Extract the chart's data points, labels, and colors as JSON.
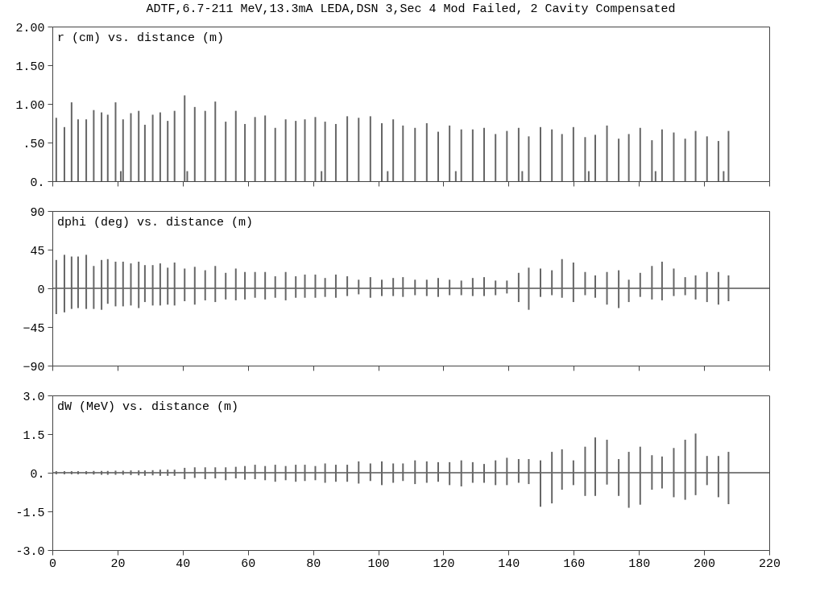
{
  "chart_data": [
    {
      "type": "bar",
      "title": "ADTF,6.7-211 MeV,13.3mA LEDA,DSN 3,Sec 4 Mod Failed, 2 Cavity Compensated",
      "annotations": [
        "r (cm) vs. distance (m)"
      ],
      "xlim": [
        0,
        220
      ],
      "xticks": [
        0,
        20,
        40,
        60,
        80,
        100,
        120,
        140,
        160,
        180,
        200,
        220
      ],
      "ylim": [
        0,
        2
      ],
      "yticks": [
        {
          "value": 0,
          "label": "0."
        },
        {
          "value": 0.5,
          "label": ".50"
        },
        {
          "value": 1,
          "label": "1.00"
        },
        {
          "value": 1.5,
          "label": "1.50"
        },
        {
          "value": 2,
          "label": "2.00"
        }
      ],
      "tick_labels": "y",
      "grid": false,
      "x": [
        1.2,
        3.7,
        5.9,
        7.9,
        10.4,
        12.7,
        15.1,
        17.0,
        19.4,
        21.7,
        24.1,
        26.5,
        28.4,
        30.8,
        33.1,
        35.4,
        37.5,
        40.6,
        43.7,
        46.9,
        50.0,
        53.2,
        56.3,
        59.1,
        62.2,
        65.3,
        68.4,
        71.6,
        74.7,
        77.5,
        80.7,
        83.7,
        87.0,
        90.5,
        94.0,
        97.6,
        101.1,
        104.6,
        107.6,
        111.3,
        114.9,
        118.4,
        121.9,
        125.5,
        129.0,
        132.5,
        136.0,
        139.5,
        143.1,
        146.2,
        149.8,
        153.3,
        156.4,
        159.9,
        163.5,
        166.6,
        170.2,
        173.8,
        176.9,
        180.4,
        184.0,
        187.1,
        190.7,
        194.2,
        197.4,
        200.9,
        204.4,
        207.5
      ],
      "series": [
        {
          "color": "#666666",
          "values": [
            0.82,
            0.7,
            1.02,
            0.8,
            0.8,
            0.92,
            0.89,
            0.86,
            1.02,
            0.8,
            0.88,
            0.91,
            0.73,
            0.86,
            0.89,
            0.78,
            0.91,
            1.11,
            0.96,
            0.91,
            1.03,
            0.77,
            0.91,
            0.74,
            0.83,
            0.85,
            0.69,
            0.8,
            0.78,
            0.8,
            0.83,
            0.77,
            0.74,
            0.84,
            0.82,
            0.84,
            0.75,
            0.8,
            0.72,
            0.69,
            0.75,
            0.64,
            0.72,
            0.67,
            0.67,
            0.69,
            0.61,
            0.65,
            0.69,
            0.58,
            0.7,
            0.67,
            0.61,
            0.7,
            0.57,
            0.6,
            0.72,
            0.55,
            0.61,
            0.69,
            0.53,
            0.67,
            0.63,
            0.55,
            0.65,
            0.58,
            0.52,
            0.65
          ]
        },
        {
          "color": "#666666",
          "x": [
            21.0,
            41.4,
            82.6,
            102.9,
            123.8,
            144.2,
            164.6,
            185.1,
            206.0
          ],
          "values": [
            0.13,
            0.13,
            0.13,
            0.13,
            0.13,
            0.13,
            0.13,
            0.13,
            0.13
          ]
        }
      ]
    },
    {
      "type": "bar",
      "annotations": [
        "dphi (deg) vs. distance (m)"
      ],
      "xlim": [
        0,
        220
      ],
      "xticks": [
        0,
        20,
        40,
        60,
        80,
        100,
        120,
        140,
        160,
        180,
        200,
        220
      ],
      "ylim": [
        -90,
        90
      ],
      "yticks": [
        -90,
        -45,
        0,
        45,
        90
      ],
      "tick_labels": "y",
      "grid": false,
      "color": "#666666",
      "ref_lines": [
        {
          "axis": "y",
          "value": 0,
          "color": "#555555"
        }
      ],
      "x": [
        1.2,
        3.7,
        5.9,
        7.9,
        10.4,
        12.7,
        15.1,
        17.0,
        19.4,
        21.7,
        24.1,
        26.5,
        28.4,
        30.8,
        33.1,
        35.4,
        37.5,
        40.6,
        43.7,
        46.9,
        50.0,
        53.2,
        56.3,
        59.1,
        62.2,
        65.3,
        68.4,
        71.6,
        74.7,
        77.5,
        80.7,
        83.7,
        87.0,
        90.5,
        94.0,
        97.6,
        101.1,
        104.6,
        107.6,
        111.3,
        114.9,
        118.4,
        121.9,
        125.5,
        129.0,
        132.5,
        136.0,
        139.5,
        143.1,
        146.2,
        149.8,
        153.3,
        156.4,
        159.9,
        163.5,
        166.6,
        170.2,
        173.8,
        176.9,
        180.4,
        184.0,
        187.1,
        190.7,
        194.2,
        197.4,
        200.9,
        204.4,
        207.5
      ],
      "base": [
        -30,
        -28,
        -24,
        -23,
        -24,
        -24,
        -25,
        -18,
        -21,
        -21,
        -20,
        -23,
        -16,
        -20,
        -20,
        -19,
        -20,
        -15,
        -19,
        -14,
        -16,
        -13,
        -14,
        -13,
        -11,
        -13,
        -11,
        -14,
        -11,
        -11,
        -11,
        -10,
        -11,
        -9,
        -7,
        -11,
        -9,
        -9,
        -10,
        -8,
        -9,
        -10,
        -8,
        -8,
        -9,
        -9,
        -8,
        -6,
        -16,
        -25,
        -10,
        -8,
        -11,
        -16,
        -8,
        -11,
        -19,
        -23,
        -16,
        -10,
        -13,
        -14,
        -9,
        -8,
        -13,
        -16,
        -19,
        -15
      ],
      "values": [
        63,
        67,
        61,
        60,
        63,
        50,
        58,
        52,
        52,
        52,
        49,
        54,
        43,
        47,
        49,
        43,
        50,
        38,
        44,
        35,
        42,
        31,
        37,
        32,
        30,
        32,
        25,
        33,
        25,
        27,
        27,
        22,
        27,
        23,
        17,
        24,
        19,
        21,
        23,
        18,
        19,
        22,
        18,
        17,
        21,
        22,
        17,
        15,
        34,
        49,
        33,
        29,
        45,
        46,
        27,
        26,
        38,
        44,
        26,
        28,
        39,
        45,
        32,
        21,
        28,
        35,
        38,
        30
      ]
    },
    {
      "type": "bar",
      "annotations": [
        "dW (MeV) vs. distance (m)"
      ],
      "xlim": [
        0,
        220
      ],
      "xticks": [
        0,
        20,
        40,
        60,
        80,
        100,
        120,
        140,
        160,
        180,
        200,
        220
      ],
      "ylim": [
        -3,
        3
      ],
      "yticks": [
        {
          "value": -3,
          "label": "-3.0"
        },
        {
          "value": -1.5,
          "label": "-1.5"
        },
        {
          "value": 0,
          "label": "0."
        },
        {
          "value": 1.5,
          "label": "1.5"
        },
        {
          "value": 3,
          "label": "3.0"
        }
      ],
      "grid": false,
      "color": "#666666",
      "ref_lines": [
        {
          "axis": "y",
          "value": 0,
          "color": "#555555"
        }
      ],
      "x": [
        1.2,
        3.7,
        5.9,
        7.9,
        10.4,
        12.7,
        15.1,
        17.0,
        19.4,
        21.7,
        24.1,
        26.5,
        28.4,
        30.8,
        33.1,
        35.4,
        37.5,
        40.6,
        43.7,
        46.9,
        50.0,
        53.2,
        56.3,
        59.1,
        62.2,
        65.3,
        68.4,
        71.6,
        74.7,
        77.5,
        80.7,
        83.7,
        87.0,
        90.5,
        94.0,
        97.6,
        101.1,
        104.6,
        107.6,
        111.3,
        114.9,
        118.4,
        121.9,
        125.5,
        129.0,
        132.5,
        136.0,
        139.5,
        143.1,
        146.2,
        149.8,
        153.3,
        156.4,
        159.9,
        163.5,
        166.6,
        170.2,
        173.8,
        176.9,
        180.4,
        184.0,
        187.1,
        190.7,
        194.2,
        197.4,
        200.9,
        204.4,
        207.5
      ],
      "base": [
        -0.06,
        -0.06,
        -0.06,
        -0.06,
        -0.06,
        -0.07,
        -0.08,
        -0.08,
        -0.08,
        -0.08,
        -0.09,
        -0.1,
        -0.12,
        -0.1,
        -0.12,
        -0.12,
        -0.12,
        -0.25,
        -0.2,
        -0.25,
        -0.22,
        -0.29,
        -0.22,
        -0.27,
        -0.25,
        -0.29,
        -0.35,
        -0.29,
        -0.35,
        -0.32,
        -0.29,
        -0.39,
        -0.35,
        -0.35,
        -0.42,
        -0.32,
        -0.48,
        -0.39,
        -0.32,
        -0.44,
        -0.39,
        -0.35,
        -0.48,
        -0.53,
        -0.39,
        -0.39,
        -0.48,
        -0.48,
        -0.39,
        -0.44,
        -1.32,
        -1.19,
        -0.66,
        -0.48,
        -0.9,
        -0.9,
        -0.46,
        -0.9,
        -1.36,
        -1.24,
        -0.66,
        -0.61,
        -0.95,
        -1.05,
        -0.87,
        -0.48,
        -0.95,
        -1.22
      ],
      "values": [
        0.12,
        0.12,
        0.12,
        0.12,
        0.12,
        0.14,
        0.15,
        0.15,
        0.16,
        0.16,
        0.18,
        0.19,
        0.21,
        0.2,
        0.24,
        0.24,
        0.24,
        0.44,
        0.41,
        0.46,
        0.43,
        0.5,
        0.45,
        0.53,
        0.56,
        0.55,
        0.66,
        0.55,
        0.66,
        0.63,
        0.55,
        0.75,
        0.66,
        0.66,
        0.86,
        0.68,
        0.92,
        0.75,
        0.68,
        0.92,
        0.83,
        0.76,
        0.89,
        1.01,
        0.8,
        0.73,
        0.96,
        1.06,
        0.92,
        0.97,
        1.8,
        2.0,
        1.57,
        0.96,
        1.91,
        2.27,
        1.74,
        1.43,
        2.17,
        2.25,
        1.34,
        1.24,
        1.91,
        2.33,
        2.39,
        1.13,
        1.6,
        2.03
      ]
    }
  ]
}
